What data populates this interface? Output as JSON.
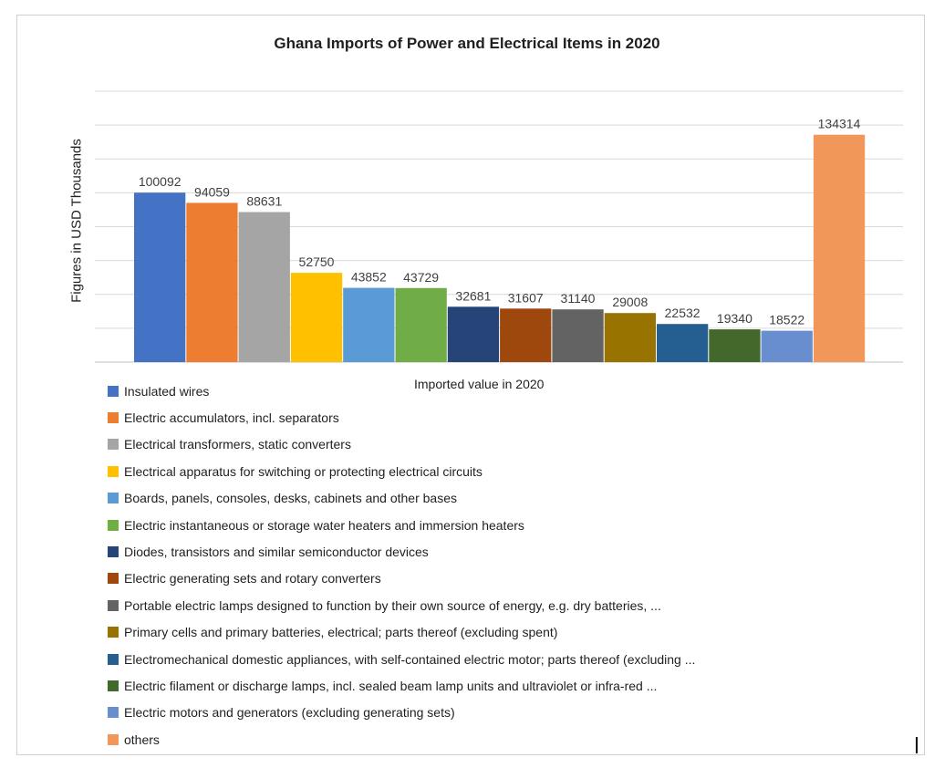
{
  "chart_data": {
    "type": "bar",
    "title": "Ghana Imports of Power and Electrical Items in 2020",
    "ylabel": "Figures in USD Thousands",
    "xlabel": "",
    "categories": [
      "Imported value in 2020"
    ],
    "ylim": [
      0,
      160000
    ],
    "grid": true,
    "legend_position": "bottom-left",
    "series": [
      {
        "name": "Insulated wires",
        "value": 100092,
        "label": "100092",
        "color": "#4472c4"
      },
      {
        "name": "Electric accumulators, incl. separators",
        "value": 94059,
        "label": "94059",
        "color": "#ed7d31"
      },
      {
        "name": "Electrical transformers, static converters",
        "value": 88631,
        "label": "88631",
        "color": "#a5a5a5"
      },
      {
        "name": "Electrical apparatus for switching or protecting electrical circuits",
        "value": 52750,
        "label": "52750",
        "color": "#ffc000"
      },
      {
        "name": "Boards, panels, consoles, desks, cabinets and other bases",
        "value": 43852,
        "label": "43852",
        "color": "#5b9bd5"
      },
      {
        "name": "Electric instantaneous or storage water heaters and immersion heaters",
        "value": 43729,
        "label": "43729",
        "color": "#70ad47"
      },
      {
        "name": "Diodes, transistors and similar semiconductor devices",
        "value": 32681,
        "label": "32681",
        "color": "#264478"
      },
      {
        "name": "Electric generating sets and rotary converters",
        "value": 31607,
        "label": "31607",
        "color": "#9e480e"
      },
      {
        "name": "Portable electric lamps designed to function by their own source of energy, e.g. dry batteries, ...",
        "value": 31140,
        "label": "31140",
        "color": "#636363"
      },
      {
        "name": "Primary cells and primary batteries, electrical; parts thereof (excluding spent)",
        "value": 29008,
        "label": "29008",
        "color": "#997300"
      },
      {
        "name": "Electromechanical domestic appliances, with self-contained electric motor; parts thereof (excluding ...",
        "value": 22532,
        "label": "22532",
        "color": "#255e91"
      },
      {
        "name": "Electric filament or discharge lamps, incl. sealed beam lamp units and ultraviolet or infra-red ...",
        "value": 19340,
        "label": "19340",
        "color": "#43682b"
      },
      {
        "name": "Electric motors and generators (excluding generating sets)",
        "value": 18522,
        "label": "18522",
        "color": "#698ed0"
      },
      {
        "name": "others",
        "value": 134314,
        "label": "134314",
        "color": "#f1975a"
      }
    ]
  }
}
